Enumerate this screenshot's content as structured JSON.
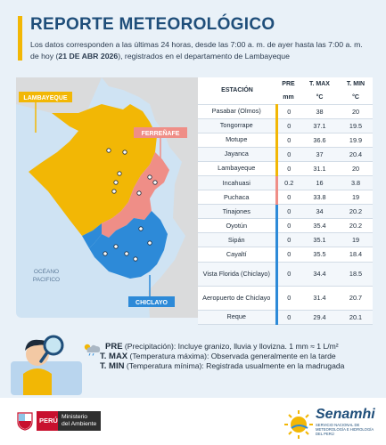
{
  "header": {
    "title": "REPORTE METEOROLÓGICO",
    "subtitle_part1": "Los datos corresponden a las últimas 24 horas, desde las 7:00 a. m. de ayer hasta las 7:00 a. m. de hoy (",
    "subtitle_date": "21 DE ABR 2026",
    "subtitle_part2": "), registrados en el departamento de Lambayeque"
  },
  "map": {
    "label_lambayeque": "LAMBAYEQUE",
    "label_ferrenafe": "FERREÑAFE",
    "label_chiclayo": "CHICLAYO",
    "label_ocean_1": "OCÉANO",
    "label_ocean_2": "PACIFICO",
    "colors": {
      "lambayeque": "#f2b705",
      "ferrenafe": "#ef8e87",
      "chiclayo": "#2d8ad8",
      "sea": "#cfe3f3",
      "land": "#d9d9d9"
    }
  },
  "table": {
    "headers": {
      "station": "ESTACIÓN",
      "pre": "PRE",
      "tmax": "T. MAX",
      "tmin": "T. MIN",
      "pre_unit": "mm",
      "tmax_unit": "°C",
      "tmin_unit": "°C"
    },
    "rows": [
      {
        "station": "Pasabar (Olmos)",
        "pre": "0",
        "tmax": "38",
        "tmin": "20"
      },
      {
        "station": "Tongorrape",
        "pre": "0",
        "tmax": "37.1",
        "tmin": "19.5"
      },
      {
        "station": "Motupe",
        "pre": "0",
        "tmax": "36.6",
        "tmin": "19.9"
      },
      {
        "station": "Jayanca",
        "pre": "0",
        "tmax": "37",
        "tmin": "20.4"
      },
      {
        "station": "Lambayeque",
        "pre": "0",
        "tmax": "31.1",
        "tmin": "20"
      },
      {
        "station": "Incahuasi",
        "pre": "0.2",
        "tmax": "16",
        "tmin": "3.8"
      },
      {
        "station": "Puchaca",
        "pre": "0",
        "tmax": "33.8",
        "tmin": "19"
      },
      {
        "station": "Tinajones",
        "pre": "0",
        "tmax": "34",
        "tmin": "20.2"
      },
      {
        "station": "Oyotún",
        "pre": "0",
        "tmax": "35.4",
        "tmin": "20.2"
      },
      {
        "station": "Sipán",
        "pre": "0",
        "tmax": "35.1",
        "tmin": "19"
      },
      {
        "station": "Cayaltí",
        "pre": "0",
        "tmax": "35.5",
        "tmin": "18.4"
      },
      {
        "station": "Vista Florida (Chiclayo)",
        "pre": "0",
        "tmax": "34.4",
        "tmin": "18.5"
      },
      {
        "station": "Aeropuerto de Chiclayo",
        "pre": "0",
        "tmax": "31.4",
        "tmin": "20.7"
      },
      {
        "station": "Reque",
        "pre": "0",
        "tmax": "29.4",
        "tmin": "20.1"
      }
    ]
  },
  "legend": {
    "pre_key": "PRE",
    "pre_text": " (Precipitación): Incluye granizo, lluvia y llovizna. 1 mm ≈ 1 L/m²",
    "tmax_key": "T. MAX",
    "tmax_text": " (Temperatura máxima): Observada generalmente en la tarde",
    "tmin_key": "T. MIN",
    "tmin_text": " (Temperatura mínima): Registrada usualmente en la madrugada"
  },
  "footer": {
    "peru": "PERÚ",
    "ministry_line1": "Ministerio",
    "ministry_line2": "del Ambiente",
    "senamhi": "Senamhi",
    "senamhi_sub": "SERVICIO NACIONAL DE METEOROLOGÍA E HIDROLOGÍA DEL PERÚ"
  }
}
